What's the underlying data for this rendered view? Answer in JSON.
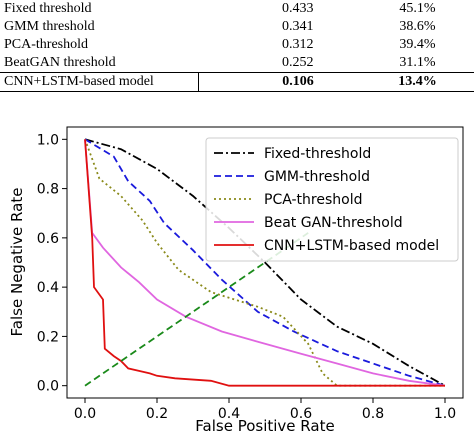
{
  "table": {
    "rows": [
      {
        "method": "Fixed threshold",
        "v1": "0.433",
        "v2": "45.1%"
      },
      {
        "method": "GMM threshold",
        "v1": "0.341",
        "v2": "38.6%"
      },
      {
        "method": "PCA-threshold",
        "v1": "0.312",
        "v2": "39.4%"
      },
      {
        "method": "BeatGAN threshold",
        "v1": "0.252",
        "v2": "31.1%"
      },
      {
        "method": "CNN+LSTM-based model",
        "v1": "0.106",
        "v2": "13.4%"
      }
    ]
  },
  "chart_data": {
    "type": "line",
    "xlabel": "False Positive Rate",
    "ylabel": "False Negative Rate",
    "xlim": [
      -0.05,
      1.05
    ],
    "ylim": [
      -0.05,
      1.05
    ],
    "xticks": [
      "0.0",
      "0.2",
      "0.4",
      "0.6",
      "0.8",
      "1.0"
    ],
    "yticks": [
      "0.0",
      "0.2",
      "0.4",
      "0.6",
      "0.8",
      "1.0"
    ],
    "grid": false,
    "legend_position": "top-right",
    "series": [
      {
        "name": "Fixed-threshold",
        "color": "#000000",
        "dash": "dashdot",
        "x": [
          0.0,
          0.1,
          0.2,
          0.3,
          0.4,
          0.5,
          0.6,
          0.7,
          0.8,
          0.9,
          1.0
        ],
        "y": [
          1.0,
          0.96,
          0.88,
          0.77,
          0.64,
          0.5,
          0.35,
          0.24,
          0.17,
          0.08,
          0.0
        ]
      },
      {
        "name": "GMM-threshold",
        "color": "#1a1adc",
        "dash": "dashed",
        "x": [
          0.0,
          0.08,
          0.12,
          0.18,
          0.22,
          0.3,
          0.38,
          0.48,
          0.58,
          0.7,
          0.8,
          0.9,
          1.0
        ],
        "y": [
          1.0,
          0.93,
          0.83,
          0.75,
          0.66,
          0.55,
          0.43,
          0.3,
          0.22,
          0.14,
          0.09,
          0.04,
          0.0
        ]
      },
      {
        "name": "PCA-threshold",
        "color": "#8a8a1a",
        "dash": "dotted",
        "x": [
          0.0,
          0.04,
          0.1,
          0.16,
          0.2,
          0.26,
          0.35,
          0.48,
          0.55,
          0.62,
          0.66,
          0.7,
          1.0
        ],
        "y": [
          1.0,
          0.84,
          0.77,
          0.67,
          0.58,
          0.47,
          0.38,
          0.32,
          0.28,
          0.17,
          0.05,
          0.0,
          0.0
        ]
      },
      {
        "name": "Beat GAN-threshold",
        "color": "#e066e0",
        "dash": "solid",
        "x": [
          0.0,
          0.02,
          0.05,
          0.1,
          0.15,
          0.2,
          0.28,
          0.38,
          0.5,
          0.6,
          0.7,
          0.8,
          0.9,
          1.0
        ],
        "y": [
          1.0,
          0.62,
          0.56,
          0.48,
          0.42,
          0.35,
          0.28,
          0.22,
          0.17,
          0.13,
          0.09,
          0.05,
          0.02,
          0.0
        ]
      },
      {
        "name": "CNN+LSTM-based model",
        "color": "#e01010",
        "dash": "solid",
        "x": [
          0.0,
          0.02,
          0.025,
          0.05,
          0.055,
          0.08,
          0.1,
          0.12,
          0.15,
          0.18,
          0.2,
          0.25,
          0.35,
          0.4,
          0.6,
          0.8,
          1.0
        ],
        "y": [
          1.0,
          0.6,
          0.4,
          0.35,
          0.15,
          0.12,
          0.1,
          0.07,
          0.06,
          0.05,
          0.04,
          0.03,
          0.02,
          0.0,
          0.0,
          0.0,
          0.0
        ]
      },
      {
        "name": "",
        "color": "#1a8a1a",
        "dash": "dashed",
        "x": [
          0.0,
          0.62
        ],
        "y": [
          0.0,
          0.62
        ]
      }
    ]
  }
}
